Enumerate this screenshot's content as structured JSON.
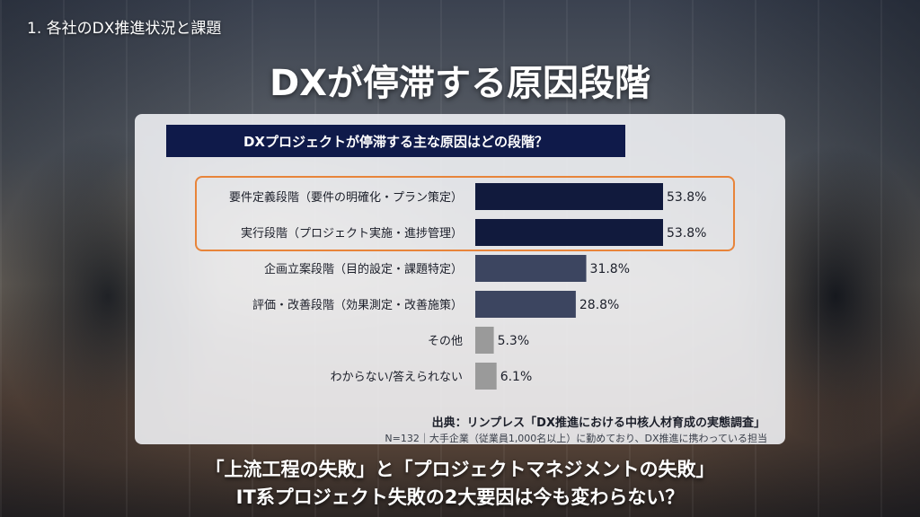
{
  "header": {
    "section_label": "1. 各社のDX推進状況と課題",
    "title": "DXが停滞する原因段階"
  },
  "chart_data": {
    "type": "bar",
    "orientation": "horizontal",
    "title": "DXプロジェクトが停滞する主な原因はどの段階？",
    "categories": [
      "要件定義段階（要件の明確化・プラン策定）",
      "実行段階（プロジェクト実施・進捗管理）",
      "企画立案段階（目的設定・課題特定）",
      "評価・改善段階（効果測定・改善施策）",
      "その他",
      "わからない/答えられない"
    ],
    "values": [
      53.8,
      53.8,
      31.8,
      28.8,
      5.3,
      6.1
    ],
    "value_labels": [
      "53.8%",
      "53.8%",
      "31.8%",
      "28.8%",
      "5.3%",
      "6.1%"
    ],
    "bar_colors": [
      "#111a3d",
      "#111a3d",
      "#3c4560",
      "#3c4560",
      "#9a9a9a",
      "#9a9a9a"
    ],
    "highlighted_categories": [
      0,
      1
    ],
    "highlight_color": "#e8843a",
    "xlim": [
      0,
      60
    ],
    "grid": false
  },
  "source": {
    "citation": "出典：リンプレス「DX推進における中核人材育成の実態調査」",
    "note": "N=132｜大手企業（従業員1,000名以上）に勤めており、DX推進に携わっている担当"
  },
  "conclusion": {
    "line1": "「上流工程の失敗」と「プロジェクトマネジメントの失敗」",
    "line2": "IT系プロジェクト失敗の2大要因は今も変わらない？"
  }
}
